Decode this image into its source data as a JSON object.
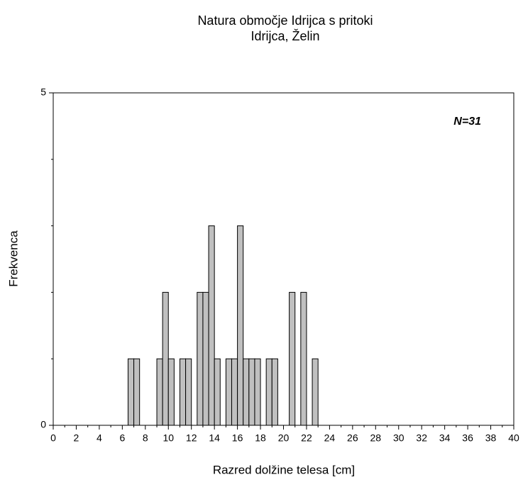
{
  "chart_data": {
    "type": "histogram",
    "title": [
      "Natura območje Idrijca s pritoki",
      "Idrijca, Želin"
    ],
    "xlabel": "Razred dolžine telesa [cm]",
    "ylabel": "Frekvenca",
    "annotation": "N=31",
    "bins": [
      6.5,
      7,
      7.5,
      8,
      8.5,
      9,
      9.5,
      10,
      10.5,
      11,
      11.5,
      12,
      12.5,
      13,
      13.5,
      14,
      14.5,
      15,
      15.5,
      16,
      16.5,
      17,
      17.5,
      18,
      18.5,
      19,
      19.5,
      20,
      20.5,
      21,
      21.5,
      22,
      22.5,
      23
    ],
    "values": [
      1,
      1,
      0,
      0,
      0,
      1,
      2,
      1,
      0,
      1,
      1,
      0,
      2,
      2,
      3,
      1,
      0,
      1,
      1,
      3,
      1,
      1,
      1,
      0,
      1,
      1,
      0,
      0,
      2,
      0,
      2,
      0,
      1
    ],
    "color": "#c0c0c0",
    "xlim": [
      0,
      40
    ],
    "xticks": [
      0,
      2,
      4,
      6,
      8,
      10,
      12,
      14,
      16,
      18,
      20,
      22,
      24,
      26,
      28,
      30,
      32,
      34,
      36,
      38,
      40
    ],
    "xminorticks": [
      1,
      3,
      5,
      7,
      9,
      11,
      13,
      15,
      17,
      19,
      21,
      23,
      25,
      27,
      29,
      31,
      33,
      35,
      37,
      39
    ],
    "ylim": [
      0,
      5
    ],
    "yticks": [
      0,
      5
    ],
    "yminorticks": [
      1,
      2,
      3,
      4
    ]
  }
}
